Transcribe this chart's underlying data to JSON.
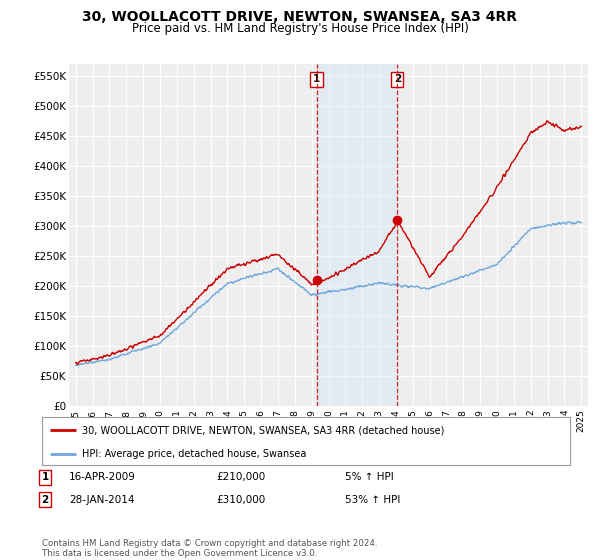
{
  "title": "30, WOOLLACOTT DRIVE, NEWTON, SWANSEA, SA3 4RR",
  "subtitle": "Price paid vs. HM Land Registry's House Price Index (HPI)",
  "ylabel_ticks": [
    "£0",
    "£50K",
    "£100K",
    "£150K",
    "£200K",
    "£250K",
    "£300K",
    "£350K",
    "£400K",
    "£450K",
    "£500K",
    "£550K"
  ],
  "ytick_values": [
    0,
    50000,
    100000,
    150000,
    200000,
    250000,
    300000,
    350000,
    400000,
    450000,
    500000,
    550000
  ],
  "ylim": [
    0,
    570000
  ],
  "background_color": "#ffffff",
  "plot_bg_color": "#eeeeee",
  "grid_color": "#ffffff",
  "sale1_x": 2009.29,
  "sale1_price": 210000,
  "sale2_x": 2014.08,
  "sale2_price": 310000,
  "legend_line1": "30, WOOLLACOTT DRIVE, NEWTON, SWANSEA, SA3 4RR (detached house)",
  "legend_line2": "HPI: Average price, detached house, Swansea",
  "footer": "Contains HM Land Registry data © Crown copyright and database right 2024.\nThis data is licensed under the Open Government Licence v3.0.",
  "hpi_color": "#6fa8dc",
  "price_color": "#cc0000",
  "vline_color": "#cc0000",
  "span_color": "#d0e8f8"
}
